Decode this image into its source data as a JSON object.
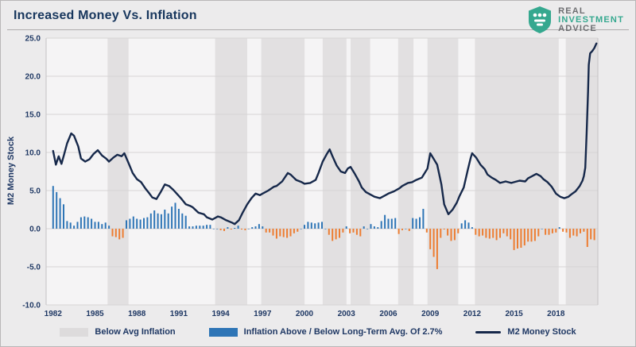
{
  "header": {
    "title": "Increased Money Vs. Inflation"
  },
  "logo": {
    "line1": "REAL",
    "line2": "INVESTMENT",
    "line3": "ADVICE",
    "shield_color": "#35a88f"
  },
  "legend": {
    "below_avg": "Below Avg Inflation",
    "bars": "Inflation Above / Below Long-Term Avg. Of 2.7%",
    "line": "M2 Money Stock"
  },
  "chart_data": {
    "type": "combo-bar-line",
    "title": "Increased Money Vs. Inflation",
    "ylabel": "M2 Money Stock",
    "xlabel": "",
    "ylim": [
      -10,
      25
    ],
    "yticks": [
      25,
      20,
      15,
      10,
      5,
      0,
      -5,
      -10
    ],
    "xlim": [
      1981.5,
      2021.0
    ],
    "xticks": [
      1982,
      1985,
      1991,
      1988,
      1994,
      1997,
      2000,
      2003,
      2006,
      2009,
      2012,
      2015,
      2018
    ],
    "grid": true,
    "legend_position": "bottom",
    "colors": {
      "plot_bg": "#f5f4f5",
      "band": "#e2e0e1",
      "grid": "#d6d4d5",
      "bar_pos": "#2e75b6",
      "bar_neg": "#ed7d31",
      "line": "#16284a",
      "text": "#1f3864",
      "border": "#c4c2c3"
    },
    "bands": [
      [
        1985.9,
        1987.4
      ],
      [
        1993.6,
        1995.9
      ],
      [
        1996.9,
        2000.0
      ],
      [
        2001.3,
        2003.0
      ],
      [
        2003.3,
        2004.7
      ],
      [
        2006.7,
        2007.8
      ],
      [
        2008.8,
        2011.0
      ],
      [
        2012.2,
        2018.2
      ],
      [
        2018.7,
        2021.0
      ]
    ],
    "bars": {
      "name": "Inflation Above / Below Long-Term Avg. Of 2.7%",
      "start": 1982.0,
      "step": 0.25,
      "values": [
        5.6,
        4.8,
        4.0,
        3.2,
        1.0,
        0.8,
        0.4,
        0.9,
        1.5,
        1.6,
        1.5,
        1.3,
        0.9,
        0.9,
        0.6,
        0.8,
        0.4,
        -1.0,
        -1.1,
        -1.4,
        -1.2,
        1.1,
        1.3,
        1.6,
        1.3,
        1.2,
        1.4,
        1.5,
        2.0,
        2.4,
        2.0,
        1.9,
        2.5,
        2.0,
        2.9,
        3.4,
        2.6,
        2.0,
        1.7,
        0.3,
        0.3,
        0.4,
        0.4,
        0.4,
        0.5,
        0.5,
        0.0,
        0.0,
        -0.2,
        -0.3,
        0.2,
        -0.1,
        0.1,
        0.4,
        -0.1,
        -0.2,
        0.0,
        0.2,
        0.3,
        0.6,
        0.3,
        -0.5,
        -0.5,
        -0.9,
        -1.3,
        -1.0,
        -1.1,
        -1.2,
        -1.0,
        -0.6,
        -0.4,
        0.0,
        0.5,
        0.9,
        0.8,
        0.7,
        0.8,
        0.9,
        0.0,
        -0.8,
        -1.6,
        -1.4,
        -1.2,
        -0.5,
        0.3,
        -0.6,
        -0.5,
        -0.8,
        -1.0,
        0.3,
        0.0,
        0.6,
        0.3,
        0.2,
        1.0,
        1.8,
        1.3,
        1.3,
        1.4,
        -0.7,
        -0.2,
        0.0,
        -0.3,
        1.4,
        1.3,
        1.5,
        2.6,
        -0.5,
        -2.7,
        -3.7,
        -5.3,
        -1.2,
        -0.1,
        -0.9,
        -1.6,
        -1.5,
        -0.6,
        0.7,
        1.1,
        0.8,
        0.2,
        -0.8,
        -1.0,
        -0.9,
        -1.2,
        -1.3,
        -1.2,
        -1.5,
        -1.2,
        -0.6,
        -1.0,
        -1.4,
        -2.8,
        -2.6,
        -2.5,
        -2.2,
        -1.7,
        -1.7,
        -1.6,
        -1.0,
        0.0,
        -0.8,
        -0.8,
        -0.6,
        -0.5,
        0.2,
        -0.4,
        -0.5,
        -1.2,
        -0.9,
        -1.0,
        -0.6,
        -0.4,
        -2.4,
        -1.4,
        -1.5
      ]
    },
    "line": {
      "name": "M2 Money Stock",
      "points": [
        [
          1982.0,
          10.2
        ],
        [
          1982.2,
          8.4
        ],
        [
          1982.4,
          9.5
        ],
        [
          1982.6,
          8.5
        ],
        [
          1982.8,
          9.8
        ],
        [
          1983.0,
          11.2
        ],
        [
          1983.3,
          12.5
        ],
        [
          1983.5,
          12.2
        ],
        [
          1983.8,
          10.8
        ],
        [
          1984.0,
          9.2
        ],
        [
          1984.3,
          8.8
        ],
        [
          1984.6,
          9.1
        ],
        [
          1984.9,
          9.8
        ],
        [
          1985.2,
          10.3
        ],
        [
          1985.5,
          9.6
        ],
        [
          1985.8,
          9.2
        ],
        [
          1986.0,
          8.8
        ],
        [
          1986.3,
          9.3
        ],
        [
          1986.6,
          9.7
        ],
        [
          1986.9,
          9.5
        ],
        [
          1987.1,
          9.9
        ],
        [
          1987.4,
          8.6
        ],
        [
          1987.7,
          7.3
        ],
        [
          1988.0,
          6.5
        ],
        [
          1988.3,
          6.1
        ],
        [
          1988.6,
          5.3
        ],
        [
          1988.9,
          4.6
        ],
        [
          1989.1,
          4.1
        ],
        [
          1989.4,
          3.9
        ],
        [
          1989.7,
          4.8
        ],
        [
          1990.0,
          5.8
        ],
        [
          1990.3,
          5.6
        ],
        [
          1990.6,
          5.1
        ],
        [
          1990.9,
          4.5
        ],
        [
          1991.2,
          3.9
        ],
        [
          1991.5,
          3.2
        ],
        [
          1991.8,
          3.0
        ],
        [
          1992.0,
          2.8
        ],
        [
          1992.4,
          2.1
        ],
        [
          1992.8,
          1.9
        ],
        [
          1993.0,
          1.5
        ],
        [
          1993.4,
          1.2
        ],
        [
          1993.8,
          1.6
        ],
        [
          1994.0,
          1.5
        ],
        [
          1994.4,
          1.1
        ],
        [
          1994.8,
          0.8
        ],
        [
          1995.0,
          0.6
        ],
        [
          1995.3,
          1.1
        ],
        [
          1995.6,
          2.2
        ],
        [
          1995.9,
          3.2
        ],
        [
          1996.2,
          4.0
        ],
        [
          1996.5,
          4.6
        ],
        [
          1996.8,
          4.4
        ],
        [
          1997.0,
          4.6
        ],
        [
          1997.4,
          5.0
        ],
        [
          1997.8,
          5.5
        ],
        [
          1998.0,
          5.6
        ],
        [
          1998.4,
          6.2
        ],
        [
          1998.8,
          7.3
        ],
        [
          1999.0,
          7.1
        ],
        [
          1999.4,
          6.4
        ],
        [
          1999.8,
          6.1
        ],
        [
          2000.0,
          5.9
        ],
        [
          2000.4,
          6.0
        ],
        [
          2000.8,
          6.4
        ],
        [
          2001.0,
          7.3
        ],
        [
          2001.3,
          8.8
        ],
        [
          2001.6,
          9.8
        ],
        [
          2001.8,
          10.4
        ],
        [
          2002.0,
          9.5
        ],
        [
          2002.3,
          8.3
        ],
        [
          2002.6,
          7.5
        ],
        [
          2002.9,
          7.3
        ],
        [
          2003.1,
          7.9
        ],
        [
          2003.3,
          8.1
        ],
        [
          2003.6,
          7.2
        ],
        [
          2003.9,
          6.2
        ],
        [
          2004.1,
          5.4
        ],
        [
          2004.4,
          4.8
        ],
        [
          2004.7,
          4.5
        ],
        [
          2005.0,
          4.2
        ],
        [
          2005.4,
          4.0
        ],
        [
          2005.8,
          4.4
        ],
        [
          2006.0,
          4.6
        ],
        [
          2006.4,
          4.9
        ],
        [
          2006.8,
          5.3
        ],
        [
          2007.0,
          5.6
        ],
        [
          2007.4,
          6.0
        ],
        [
          2007.7,
          6.1
        ],
        [
          2008.0,
          6.4
        ],
        [
          2008.4,
          6.7
        ],
        [
          2008.8,
          7.9
        ],
        [
          2009.0,
          9.9
        ],
        [
          2009.2,
          9.3
        ],
        [
          2009.5,
          8.4
        ],
        [
          2009.8,
          5.8
        ],
        [
          2010.0,
          3.2
        ],
        [
          2010.3,
          1.9
        ],
        [
          2010.6,
          2.5
        ],
        [
          2010.9,
          3.4
        ],
        [
          2011.1,
          4.3
        ],
        [
          2011.4,
          5.4
        ],
        [
          2011.7,
          7.8
        ],
        [
          2011.9,
          9.3
        ],
        [
          2012.0,
          9.9
        ],
        [
          2012.3,
          9.3
        ],
        [
          2012.6,
          8.4
        ],
        [
          2012.9,
          7.8
        ],
        [
          2013.1,
          7.1
        ],
        [
          2013.4,
          6.7
        ],
        [
          2013.7,
          6.4
        ],
        [
          2014.0,
          6.0
        ],
        [
          2014.4,
          6.2
        ],
        [
          2014.8,
          6.0
        ],
        [
          2015.0,
          6.1
        ],
        [
          2015.4,
          6.3
        ],
        [
          2015.8,
          6.2
        ],
        [
          2016.0,
          6.6
        ],
        [
          2016.3,
          6.9
        ],
        [
          2016.6,
          7.2
        ],
        [
          2016.9,
          6.9
        ],
        [
          2017.1,
          6.5
        ],
        [
          2017.4,
          6.1
        ],
        [
          2017.7,
          5.5
        ],
        [
          2018.0,
          4.6
        ],
        [
          2018.3,
          4.2
        ],
        [
          2018.6,
          4.0
        ],
        [
          2018.9,
          4.2
        ],
        [
          2019.1,
          4.5
        ],
        [
          2019.4,
          4.9
        ],
        [
          2019.7,
          5.6
        ],
        [
          2019.9,
          6.3
        ],
        [
          2020.0,
          6.9
        ],
        [
          2020.1,
          8.0
        ],
        [
          2020.2,
          12.5
        ],
        [
          2020.3,
          18.0
        ],
        [
          2020.35,
          21.5
        ],
        [
          2020.45,
          23.0
        ],
        [
          2020.6,
          23.3
        ],
        [
          2020.75,
          23.7
        ],
        [
          2020.9,
          24.3
        ]
      ]
    }
  }
}
